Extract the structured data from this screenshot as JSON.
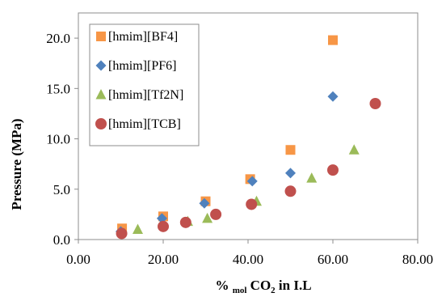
{
  "chart_data": {
    "type": "scatter",
    "title": "",
    "xlabel": {
      "prefix": "% ",
      "sub1": "mol",
      "mid": " CO",
      "sub2": "2",
      "suffix": " in I.L"
    },
    "ylabel": "Pressure  (MPa)",
    "xlim": [
      0,
      80
    ],
    "ylim": [
      0,
      22.5
    ],
    "x_ticks": [
      0,
      20,
      40,
      60,
      80
    ],
    "x_tick_labels": [
      "0.00",
      "20.00",
      "40.00",
      "60.00",
      "80.00"
    ],
    "y_ticks": [
      0,
      5,
      10,
      15,
      20
    ],
    "y_tick_labels": [
      "0.0",
      "5.0",
      "10.0",
      "15.0",
      "20.0"
    ],
    "grid": false,
    "legend_position": "top-left",
    "series": [
      {
        "name": "[hmim][BF4]",
        "marker": "square",
        "color": "#F79646",
        "x": [
          10.3,
          20.0,
          30.0,
          40.5,
          50.0,
          60.0
        ],
        "y": [
          1.1,
          2.3,
          3.8,
          6.0,
          8.9,
          19.8
        ]
      },
      {
        "name": "[hmim][PF6]",
        "marker": "diamond",
        "color": "#4F81BD",
        "x": [
          10.0,
          19.7,
          29.7,
          41.0,
          50.0,
          60.0
        ],
        "y": [
          0.8,
          2.1,
          3.6,
          5.8,
          6.6,
          14.2
        ]
      },
      {
        "name": "[hmim][Tf2N]",
        "marker": "triangle",
        "color": "#9BBB59",
        "x": [
          14.0,
          25.8,
          30.4,
          42.0,
          55.0,
          65.0
        ],
        "y": [
          1.0,
          1.8,
          2.1,
          3.8,
          6.1,
          8.9
        ]
      },
      {
        "name": "[hmim][TCB]",
        "marker": "circle",
        "color": "#C0504D",
        "x": [
          10.2,
          20.0,
          25.3,
          32.4,
          40.8,
          50.0,
          60.0,
          70.0
        ],
        "y": [
          0.6,
          1.3,
          1.7,
          2.5,
          3.5,
          4.8,
          6.9,
          13.5
        ]
      }
    ]
  }
}
